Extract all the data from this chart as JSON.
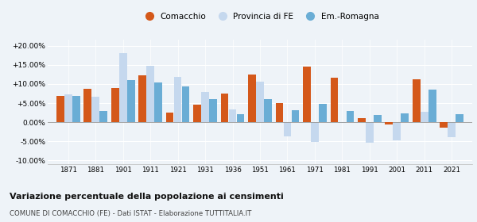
{
  "years": [
    1871,
    1881,
    1901,
    1911,
    1921,
    1931,
    1936,
    1951,
    1961,
    1971,
    1981,
    1991,
    2001,
    2011,
    2021
  ],
  "comacchio": [
    6.8,
    8.8,
    8.9,
    12.2,
    2.5,
    4.6,
    7.5,
    12.5,
    4.9,
    14.5,
    11.7,
    1.0,
    -0.5,
    11.3,
    -1.5
  ],
  "provincia_fe": [
    7.3,
    6.7,
    18.0,
    14.8,
    11.8,
    7.9,
    3.4,
    10.5,
    -3.8,
    -5.1,
    -0.2,
    -5.3,
    -4.7,
    2.8,
    -4.0
  ],
  "em_romagna": [
    6.9,
    2.9,
    11.1,
    10.4,
    9.3,
    6.1,
    2.2,
    6.1,
    3.2,
    4.7,
    3.0,
    1.9,
    2.3,
    8.5,
    2.0
  ],
  "color_comacchio": "#d4581a",
  "color_provincia": "#c5d8ee",
  "color_em": "#6aadd5",
  "title": "Variazione percentuale della popolazione ai censimenti",
  "subtitle": "COMUNE DI COMACCHIO (FE) - Dati ISTAT - Elaborazione TUTTITALIA.IT",
  "ylim": [
    -11,
    21.5
  ],
  "yticks": [
    -10.0,
    -5.0,
    0.0,
    5.0,
    10.0,
    15.0,
    20.0
  ],
  "ytick_labels": [
    "-10.00%",
    "-5.00%",
    "0.00%",
    "+5.00%",
    "+10.00%",
    "+15.00%",
    "+20.00%"
  ],
  "background_color": "#eef3f8",
  "legend_labels": [
    "Comacchio",
    "Provincia di FE",
    "Em.-Romagna"
  ]
}
